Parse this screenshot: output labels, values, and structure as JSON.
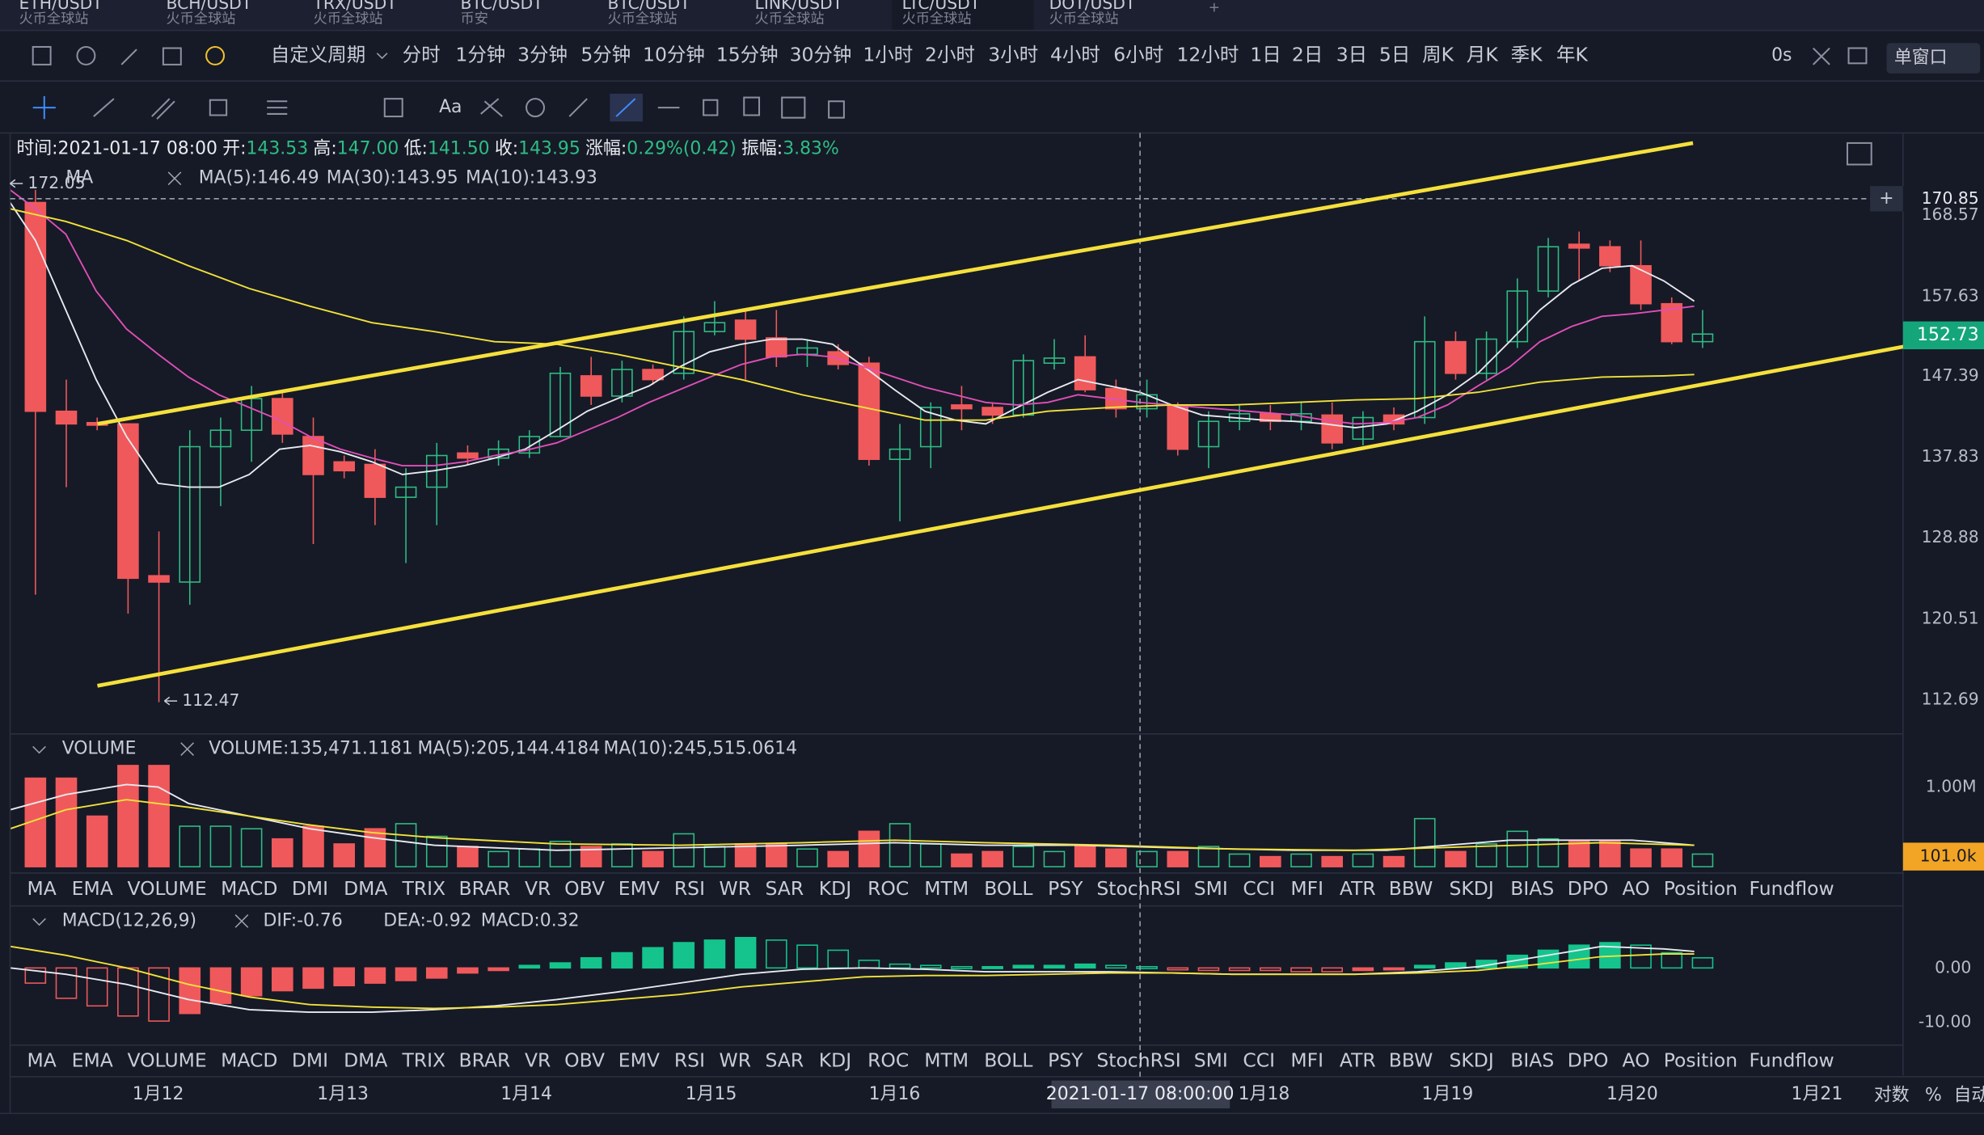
{
  "tabs": [
    {
      "pair": "ETH/USDT",
      "exchange": "火币全球站"
    },
    {
      "pair": "BCH/USDT",
      "exchange": "火币全球站"
    },
    {
      "pair": "TRX/USDT",
      "exchange": "火币全球站"
    },
    {
      "pair": "BTC/USDT",
      "exchange": "币安"
    },
    {
      "pair": "BTC/USDT",
      "exchange": "火币全球站"
    },
    {
      "pair": "LINK/USDT",
      "exchange": "火币全球站"
    },
    {
      "pair": "LTC/USDT",
      "exchange": "火币全球站",
      "active": true
    },
    {
      "pair": "DOT/USDT",
      "exchange": "火币全球站"
    }
  ],
  "periods": [
    {
      "label": "自定义周期"
    },
    {
      "label": "分时"
    },
    {
      "label": "1分钟"
    },
    {
      "label": "3分钟"
    },
    {
      "label": "5分钟"
    },
    {
      "label": "10分钟"
    },
    {
      "label": "15分钟"
    },
    {
      "label": "30分钟"
    },
    {
      "label": "1小时"
    },
    {
      "label": "2小时"
    },
    {
      "label": "3小时"
    },
    {
      "label": "4小时",
      "active": true
    },
    {
      "label": "6小时"
    },
    {
      "label": "12小时"
    },
    {
      "label": "1日"
    },
    {
      "label": "2日"
    },
    {
      "label": "3日"
    },
    {
      "label": "5日"
    },
    {
      "label": "周K"
    },
    {
      "label": "月K"
    },
    {
      "label": "季K"
    },
    {
      "label": "年K"
    }
  ],
  "toolbar_right": {
    "countdown": "0s",
    "window": "单窗口"
  },
  "info": [
    {
      "label": "时间:",
      "value": "2021-01-17 08:00"
    },
    {
      "label": "开:",
      "value": "143.53"
    },
    {
      "label": "高:",
      "value": "147.00"
    },
    {
      "label": "低:",
      "value": "141.50"
    },
    {
      "label": "收:",
      "value": "143.95"
    },
    {
      "label": "涨幅:",
      "value": "0.29%(0.42)"
    },
    {
      "label": "振幅:",
      "value": "3.83%"
    }
  ],
  "ma_legend": {
    "name": "MA",
    "items": [
      {
        "text": "MA(5):146.49",
        "color": "#e8eaf0"
      },
      {
        "text": "MA(30):143.95",
        "color": "#f2e23a"
      },
      {
        "text": "MA(10):143.93",
        "color": "#e04fb8"
      }
    ]
  },
  "markers": {
    "high": "172.05",
    "low": "112.47"
  },
  "price_axis": [
    "168.57",
    "157.63",
    "147.39",
    "137.83",
    "128.88",
    "120.51",
    "112.69"
  ],
  "crosshair_price": "170.85",
  "last_price": "152.73",
  "volume_legend": {
    "name": "VOLUME",
    "items": [
      {
        "text": "VOLUME:135,471.1181",
        "color": "#e8eaf0"
      },
      {
        "text": "MA(5):205,144.4184",
        "color": "#e8eaf0"
      },
      {
        "text": "MA(10):245,515.0614",
        "color": "#f2e23a"
      }
    ]
  },
  "volume_axis": "1.00M",
  "volume_last": "101.0k",
  "indicators": [
    "MA",
    "EMA",
    "VOLUME",
    "MACD",
    "DMI",
    "DMA",
    "TRIX",
    "BRAR",
    "VR",
    "OBV",
    "EMV",
    "RSI",
    "WR",
    "SAR",
    "KDJ",
    "ROC",
    "MTM",
    "BOLL",
    "PSY",
    "StochRSI",
    "SMI",
    "CCI",
    "MFI",
    "ATR",
    "BBW",
    "SKDJ",
    "BIAS",
    "DPO",
    "AO",
    "Position",
    "Fundflow"
  ],
  "indicator_rows": [
    {
      "highlight": 2,
      "dim": 3
    },
    {
      "highlight": 3,
      "dim": 2
    }
  ],
  "macd_legend": {
    "name": "MACD(12,26,9)",
    "items": [
      {
        "text": "DIF:-0.76",
        "color": "#e8eaf0"
      },
      {
        "text": "DEA:-0.92",
        "color": "#f2e23a"
      },
      {
        "text": "MACD:0.32",
        "color": "#2ebd85"
      }
    ]
  },
  "macd_axis": [
    "0.00",
    "-10.00"
  ],
  "dates": [
    "1月12",
    "1月13",
    "1月14",
    "1月15",
    "1月16",
    "1月18",
    "1月19",
    "1月20",
    "1月21"
  ],
  "crosshair_date": "2021-01-17 08:00:00",
  "axis_options": [
    "对数",
    "%",
    "自动"
  ]
}
